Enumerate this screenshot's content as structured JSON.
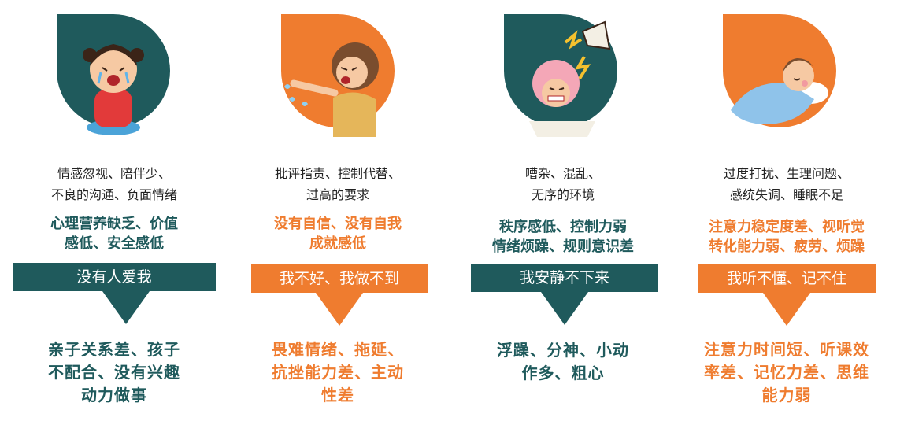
{
  "colors": {
    "teal": "#1f5a5c",
    "orange": "#ef7c2f"
  },
  "columns": [
    {
      "theme": "teal",
      "illustration_icon": "crying-girl-icon",
      "cause_lines": [
        "情感忽视、陪伴少、",
        "不良的沟通、负面情绪"
      ],
      "effect_lines": [
        "心理营养缺乏、价值",
        "感低、安全感低"
      ],
      "banner": "没有人爱我",
      "result_lines": [
        "亲子关系差、孩子",
        "不配合、没有兴趣",
        "动力做事"
      ]
    },
    {
      "theme": "orange",
      "illustration_icon": "scolding-parent-icon",
      "cause_lines": [
        "批评指责、控制代替、",
        "过高的要求"
      ],
      "effect_lines": [
        "没有自信、没有自我",
        "成就感低"
      ],
      "banner": "我不好、我做不到",
      "result_lines": [
        "畏难情绪、拖延、",
        "抗挫能力差、主动",
        "性差"
      ]
    },
    {
      "theme": "teal",
      "illustration_icon": "noise-megaphone-icon",
      "cause_lines": [
        "嘈杂、混乱、",
        "无序的环境"
      ],
      "effect_lines": [
        "秩序感低、控制力弱",
        "情绪烦躁、规则意识差"
      ],
      "banner": "我安静不下来",
      "result_lines": [
        "浮躁、分神、小动",
        "作多、粗心"
      ]
    },
    {
      "theme": "orange",
      "illustration_icon": "sleeping-child-icon",
      "cause_lines": [
        "过度打扰、生理问题、",
        "感统失调、睡眠不足"
      ],
      "effect_lines": [
        "注意力稳定度差、视听觉",
        "转化能力弱、疲劳、烦躁"
      ],
      "banner": "我听不懂、记不住",
      "result_lines": [
        "注意力时间短、听课效",
        "率差、记忆力差、思维",
        "能力弱"
      ]
    }
  ]
}
